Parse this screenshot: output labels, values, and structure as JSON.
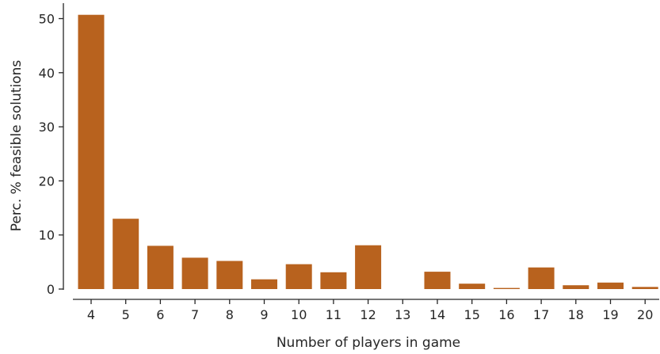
{
  "chart_data": {
    "type": "bar",
    "categories": [
      "4",
      "5",
      "6",
      "7",
      "8",
      "9",
      "10",
      "11",
      "12",
      "13",
      "14",
      "15",
      "16",
      "17",
      "18",
      "19",
      "20"
    ],
    "values": [
      50.7,
      13.0,
      8.0,
      5.8,
      5.2,
      1.8,
      4.6,
      3.1,
      8.1,
      0.0,
      3.2,
      1.0,
      0.2,
      4.0,
      0.7,
      1.2,
      0.4
    ],
    "title": "",
    "xlabel": "Number of players in game",
    "ylabel": "Perc. % feasible solutions",
    "ylim": [
      0,
      52
    ],
    "yticks": [
      0,
      10,
      20,
      30,
      40,
      50
    ],
    "grid": false,
    "colors": {
      "bar": "#b8621e",
      "axis": "#262626"
    }
  }
}
